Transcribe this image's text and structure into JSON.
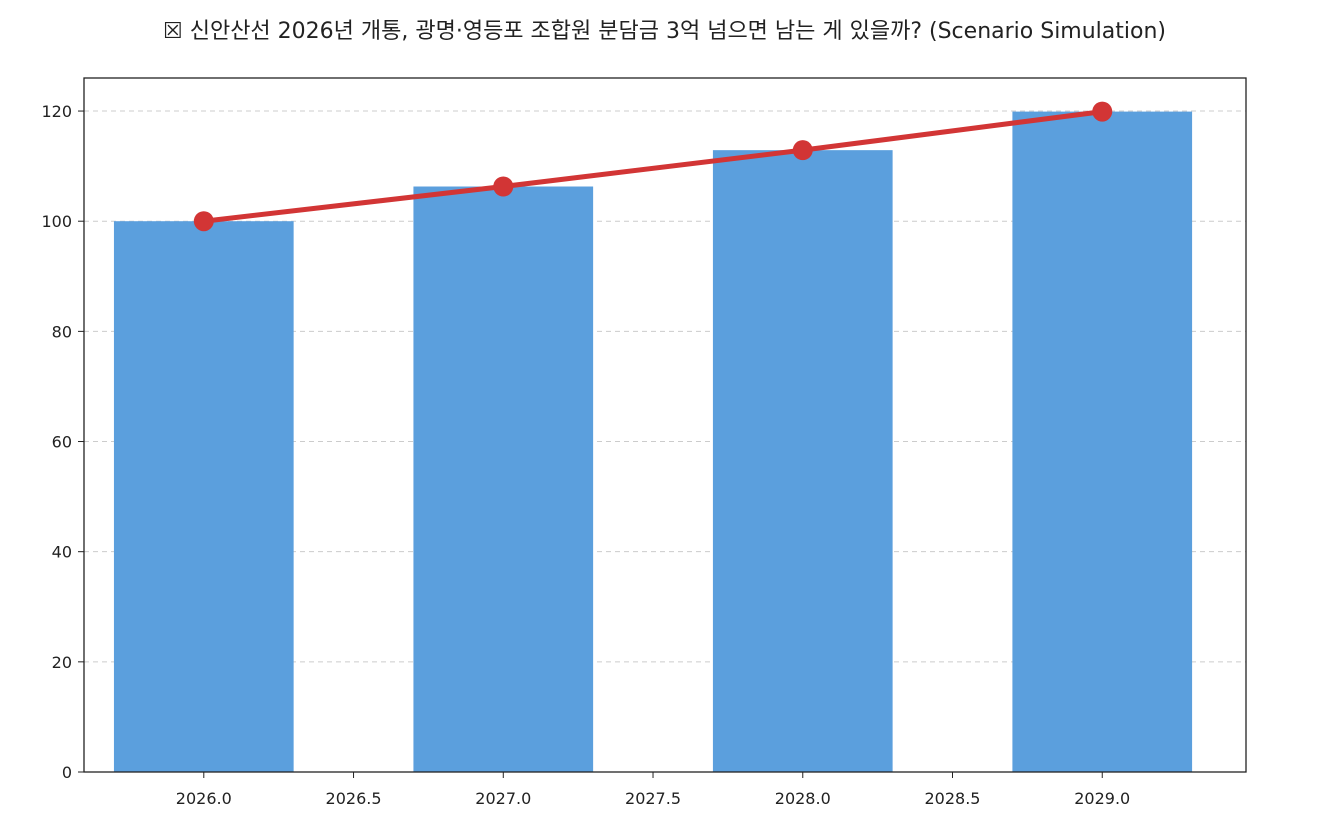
{
  "chart_data": {
    "type": "bar",
    "title": "☒ 신안산선 2026년 개통, 광명·영등포 조합원 분담금 3억 넘으면 남는 게 있을까? (Scenario Simulation)",
    "xlabel": "",
    "ylabel": "",
    "x": [
      2026,
      2027,
      2028,
      2029
    ],
    "series": [
      {
        "kind": "bar",
        "values": [
          100,
          106.3,
          112.9,
          119.9
        ]
      },
      {
        "kind": "line",
        "values": [
          100,
          106.3,
          112.9,
          119.9
        ]
      }
    ],
    "xlim": [
      2025.6,
      2029.48
    ],
    "ylim": [
      0,
      126
    ],
    "xticks": [
      "2026.0",
      "2026.5",
      "2027.0",
      "2027.5",
      "2028.0",
      "2028.5",
      "2029.0"
    ],
    "yticks": [
      "0",
      "20",
      "40",
      "60",
      "80",
      "100",
      "120"
    ],
    "grid": "y-dashed",
    "colors": {
      "bar": "#5b9fdd",
      "line": "#d23535",
      "grid": "#cccccc",
      "axis": "#222222"
    }
  }
}
